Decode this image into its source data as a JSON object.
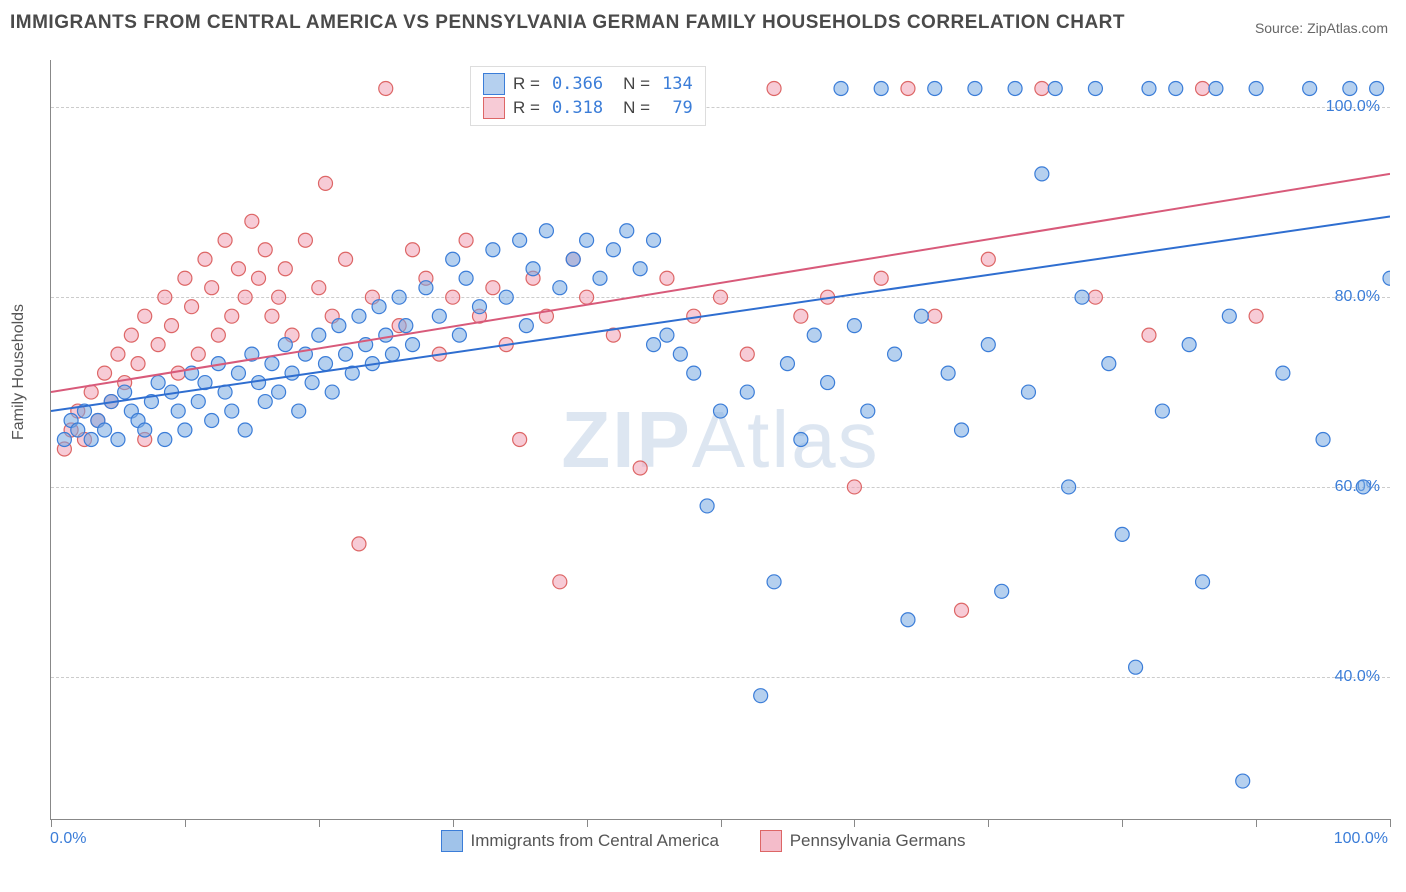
{
  "title": "IMMIGRANTS FROM CENTRAL AMERICA VS PENNSYLVANIA GERMAN FAMILY HOUSEHOLDS CORRELATION CHART",
  "source_label": "Source: ",
  "source_name": "ZipAtlas.com",
  "ylabel": "Family Households",
  "watermark_a": "ZIP",
  "watermark_b": "Atlas",
  "chart": {
    "type": "scatter",
    "xlim": [
      0,
      100
    ],
    "ylim": [
      25,
      105
    ],
    "x_tick_positions": [
      0,
      10,
      20,
      30,
      40,
      50,
      60,
      70,
      80,
      90,
      100
    ],
    "y_gridlines": [
      40,
      60,
      80,
      100
    ],
    "y_tick_labels": [
      "40.0%",
      "60.0%",
      "80.0%",
      "100.0%"
    ],
    "x_first_label": "0.0%",
    "x_last_label": "100.0%",
    "background_color": "#ffffff",
    "grid_color": "#cccccc",
    "axis_color": "#888888",
    "tick_label_color": "#3b7dd8",
    "marker_radius": 7,
    "marker_stroke_width": 1.2,
    "series": [
      {
        "name": "Immigrants from Central America",
        "fill": "rgba(120,170,225,0.55)",
        "stroke": "#3b7dd8",
        "line_color": "#2f6ed0",
        "line_width": 2,
        "line_y0": 68,
        "line_y1": 88.5,
        "r": "0.366",
        "n": "134",
        "points": [
          [
            1,
            65
          ],
          [
            1.5,
            67
          ],
          [
            2,
            66
          ],
          [
            2.5,
            68
          ],
          [
            3,
            65
          ],
          [
            3.5,
            67
          ],
          [
            4,
            66
          ],
          [
            4.5,
            69
          ],
          [
            5,
            65
          ],
          [
            5.5,
            70
          ],
          [
            6,
            68
          ],
          [
            6.5,
            67
          ],
          [
            7,
            66
          ],
          [
            7.5,
            69
          ],
          [
            8,
            71
          ],
          [
            8.5,
            65
          ],
          [
            9,
            70
          ],
          [
            9.5,
            68
          ],
          [
            10,
            66
          ],
          [
            10.5,
            72
          ],
          [
            11,
            69
          ],
          [
            11.5,
            71
          ],
          [
            12,
            67
          ],
          [
            12.5,
            73
          ],
          [
            13,
            70
          ],
          [
            13.5,
            68
          ],
          [
            14,
            72
          ],
          [
            14.5,
            66
          ],
          [
            15,
            74
          ],
          [
            15.5,
            71
          ],
          [
            16,
            69
          ],
          [
            16.5,
            73
          ],
          [
            17,
            70
          ],
          [
            17.5,
            75
          ],
          [
            18,
            72
          ],
          [
            18.5,
            68
          ],
          [
            19,
            74
          ],
          [
            19.5,
            71
          ],
          [
            20,
            76
          ],
          [
            20.5,
            73
          ],
          [
            21,
            70
          ],
          [
            21.5,
            77
          ],
          [
            22,
            74
          ],
          [
            22.5,
            72
          ],
          [
            23,
            78
          ],
          [
            23.5,
            75
          ],
          [
            24,
            73
          ],
          [
            24.5,
            79
          ],
          [
            25,
            76
          ],
          [
            25.5,
            74
          ],
          [
            26,
            80
          ],
          [
            26.5,
            77
          ],
          [
            27,
            75
          ],
          [
            28,
            81
          ],
          [
            29,
            78
          ],
          [
            30,
            84
          ],
          [
            30.5,
            76
          ],
          [
            31,
            82
          ],
          [
            32,
            79
          ],
          [
            33,
            85
          ],
          [
            34,
            80
          ],
          [
            35,
            86
          ],
          [
            35.5,
            77
          ],
          [
            36,
            83
          ],
          [
            37,
            87
          ],
          [
            38,
            81
          ],
          [
            39,
            84
          ],
          [
            40,
            86
          ],
          [
            41,
            82
          ],
          [
            42,
            85
          ],
          [
            43,
            87
          ],
          [
            44,
            83
          ],
          [
            45,
            86
          ],
          [
            45,
            75
          ],
          [
            46,
            76
          ],
          [
            47,
            74
          ],
          [
            48,
            72
          ],
          [
            49,
            58
          ],
          [
            50,
            68
          ],
          [
            52,
            70
          ],
          [
            53,
            38
          ],
          [
            54,
            50
          ],
          [
            55,
            73
          ],
          [
            56,
            65
          ],
          [
            57,
            76
          ],
          [
            58,
            71
          ],
          [
            59,
            102
          ],
          [
            60,
            77
          ],
          [
            61,
            68
          ],
          [
            62,
            102
          ],
          [
            63,
            74
          ],
          [
            64,
            46
          ],
          [
            65,
            78
          ],
          [
            66,
            102
          ],
          [
            67,
            72
          ],
          [
            68,
            66
          ],
          [
            69,
            102
          ],
          [
            70,
            75
          ],
          [
            71,
            49
          ],
          [
            72,
            102
          ],
          [
            73,
            70
          ],
          [
            74,
            93
          ],
          [
            75,
            102
          ],
          [
            76,
            60
          ],
          [
            77,
            80
          ],
          [
            78,
            102
          ],
          [
            79,
            73
          ],
          [
            80,
            55
          ],
          [
            81,
            41
          ],
          [
            82,
            102
          ],
          [
            83,
            68
          ],
          [
            84,
            102
          ],
          [
            85,
            75
          ],
          [
            86,
            50
          ],
          [
            87,
            102
          ],
          [
            88,
            78
          ],
          [
            89,
            29
          ],
          [
            90,
            102
          ],
          [
            92,
            72
          ],
          [
            94,
            102
          ],
          [
            95,
            65
          ],
          [
            97,
            102
          ],
          [
            98,
            60
          ],
          [
            99,
            102
          ],
          [
            100,
            82
          ]
        ]
      },
      {
        "name": "Pennsylvania Germans",
        "fill": "rgba(240,160,180,0.55)",
        "stroke": "#d66",
        "line_color": "#d85a7a",
        "line_width": 2,
        "line_y0": 70,
        "line_y1": 93,
        "r": "0.318",
        "n": "79",
        "points": [
          [
            1,
            64
          ],
          [
            1.5,
            66
          ],
          [
            2,
            68
          ],
          [
            2.5,
            65
          ],
          [
            3,
            70
          ],
          [
            3.5,
            67
          ],
          [
            4,
            72
          ],
          [
            4.5,
            69
          ],
          [
            5,
            74
          ],
          [
            5.5,
            71
          ],
          [
            6,
            76
          ],
          [
            6.5,
            73
          ],
          [
            7,
            78
          ],
          [
            7,
            65
          ],
          [
            8,
            75
          ],
          [
            8.5,
            80
          ],
          [
            9,
            77
          ],
          [
            9.5,
            72
          ],
          [
            10,
            82
          ],
          [
            10.5,
            79
          ],
          [
            11,
            74
          ],
          [
            11.5,
            84
          ],
          [
            12,
            81
          ],
          [
            12.5,
            76
          ],
          [
            13,
            86
          ],
          [
            13.5,
            78
          ],
          [
            14,
            83
          ],
          [
            14.5,
            80
          ],
          [
            15,
            88
          ],
          [
            15.5,
            82
          ],
          [
            16,
            85
          ],
          [
            16.5,
            78
          ],
          [
            17,
            80
          ],
          [
            17.5,
            83
          ],
          [
            18,
            76
          ],
          [
            19,
            86
          ],
          [
            20,
            81
          ],
          [
            20.5,
            92
          ],
          [
            21,
            78
          ],
          [
            22,
            84
          ],
          [
            23,
            54
          ],
          [
            24,
            80
          ],
          [
            25,
            102
          ],
          [
            26,
            77
          ],
          [
            27,
            85
          ],
          [
            28,
            82
          ],
          [
            29,
            74
          ],
          [
            30,
            80
          ],
          [
            31,
            86
          ],
          [
            32,
            78
          ],
          [
            33,
            81
          ],
          [
            34,
            75
          ],
          [
            35,
            65
          ],
          [
            36,
            82
          ],
          [
            37,
            78
          ],
          [
            38,
            50
          ],
          [
            39,
            84
          ],
          [
            40,
            80
          ],
          [
            42,
            76
          ],
          [
            44,
            62
          ],
          [
            45,
            102
          ],
          [
            46,
            82
          ],
          [
            48,
            78
          ],
          [
            50,
            80
          ],
          [
            52,
            74
          ],
          [
            54,
            102
          ],
          [
            56,
            78
          ],
          [
            58,
            80
          ],
          [
            60,
            60
          ],
          [
            62,
            82
          ],
          [
            64,
            102
          ],
          [
            66,
            78
          ],
          [
            68,
            47
          ],
          [
            70,
            84
          ],
          [
            74,
            102
          ],
          [
            78,
            80
          ],
          [
            82,
            76
          ],
          [
            86,
            102
          ],
          [
            90,
            78
          ]
        ]
      }
    ]
  },
  "legend_top": {
    "r_label": "R =",
    "n_label": "N ="
  },
  "legend_bottom": {
    "items": [
      {
        "swatch": "rgba(120,170,225,0.7)",
        "stroke": "#3b7dd8",
        "label": "Immigrants from Central America"
      },
      {
        "swatch": "rgba(240,160,180,0.7)",
        "stroke": "#d66",
        "label": "Pennsylvania Germans"
      }
    ]
  }
}
